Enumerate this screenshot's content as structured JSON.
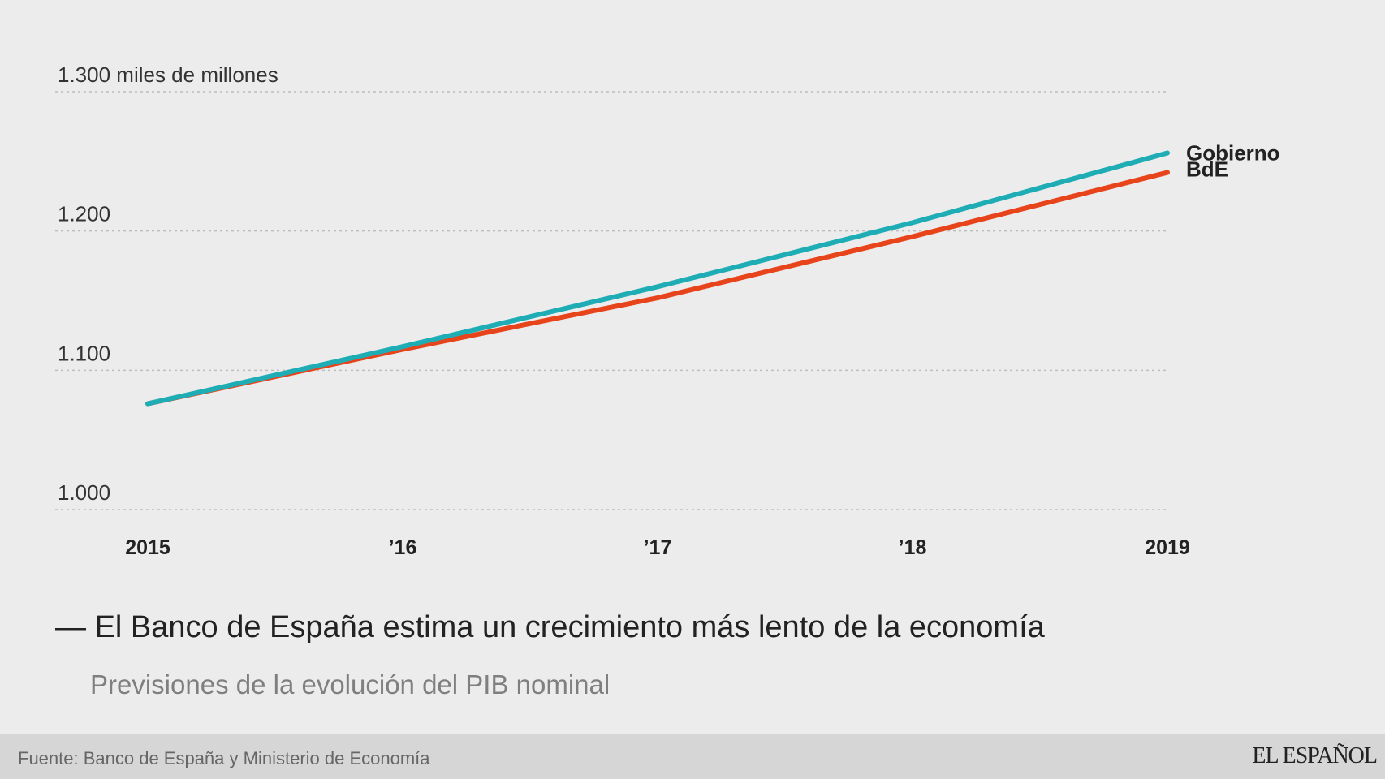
{
  "chart_data": {
    "type": "line",
    "title": "El Banco de España estima un crecimiento más lento de la economía",
    "subtitle": "Previsiones de la evolución del PIB nominal",
    "x": [
      2015,
      2016,
      2017,
      2018,
      2019
    ],
    "x_tick_labels": [
      "2015",
      "’16",
      "’17",
      "’18",
      "2019"
    ],
    "y_ticks": [
      1000,
      1100,
      1200,
      1300
    ],
    "y_tick_labels": [
      "1.000",
      "1.100",
      "1.200",
      "1.300 miles de millones"
    ],
    "ylim": [
      1000,
      1300
    ],
    "ylabel": "miles de millones",
    "grid": "horizontal dotted",
    "series": [
      {
        "name": "Gobierno",
        "color": "#1fadb5",
        "values": [
          1076,
          1117,
          1160,
          1206,
          1256
        ]
      },
      {
        "name": "BdE",
        "color": "#e8441c",
        "values": [
          1076,
          1115,
          1152,
          1196,
          1242
        ]
      }
    ]
  },
  "source": "Fuente: Banco de España y Ministerio de Economía",
  "brand": "EL ESPAÑOL"
}
